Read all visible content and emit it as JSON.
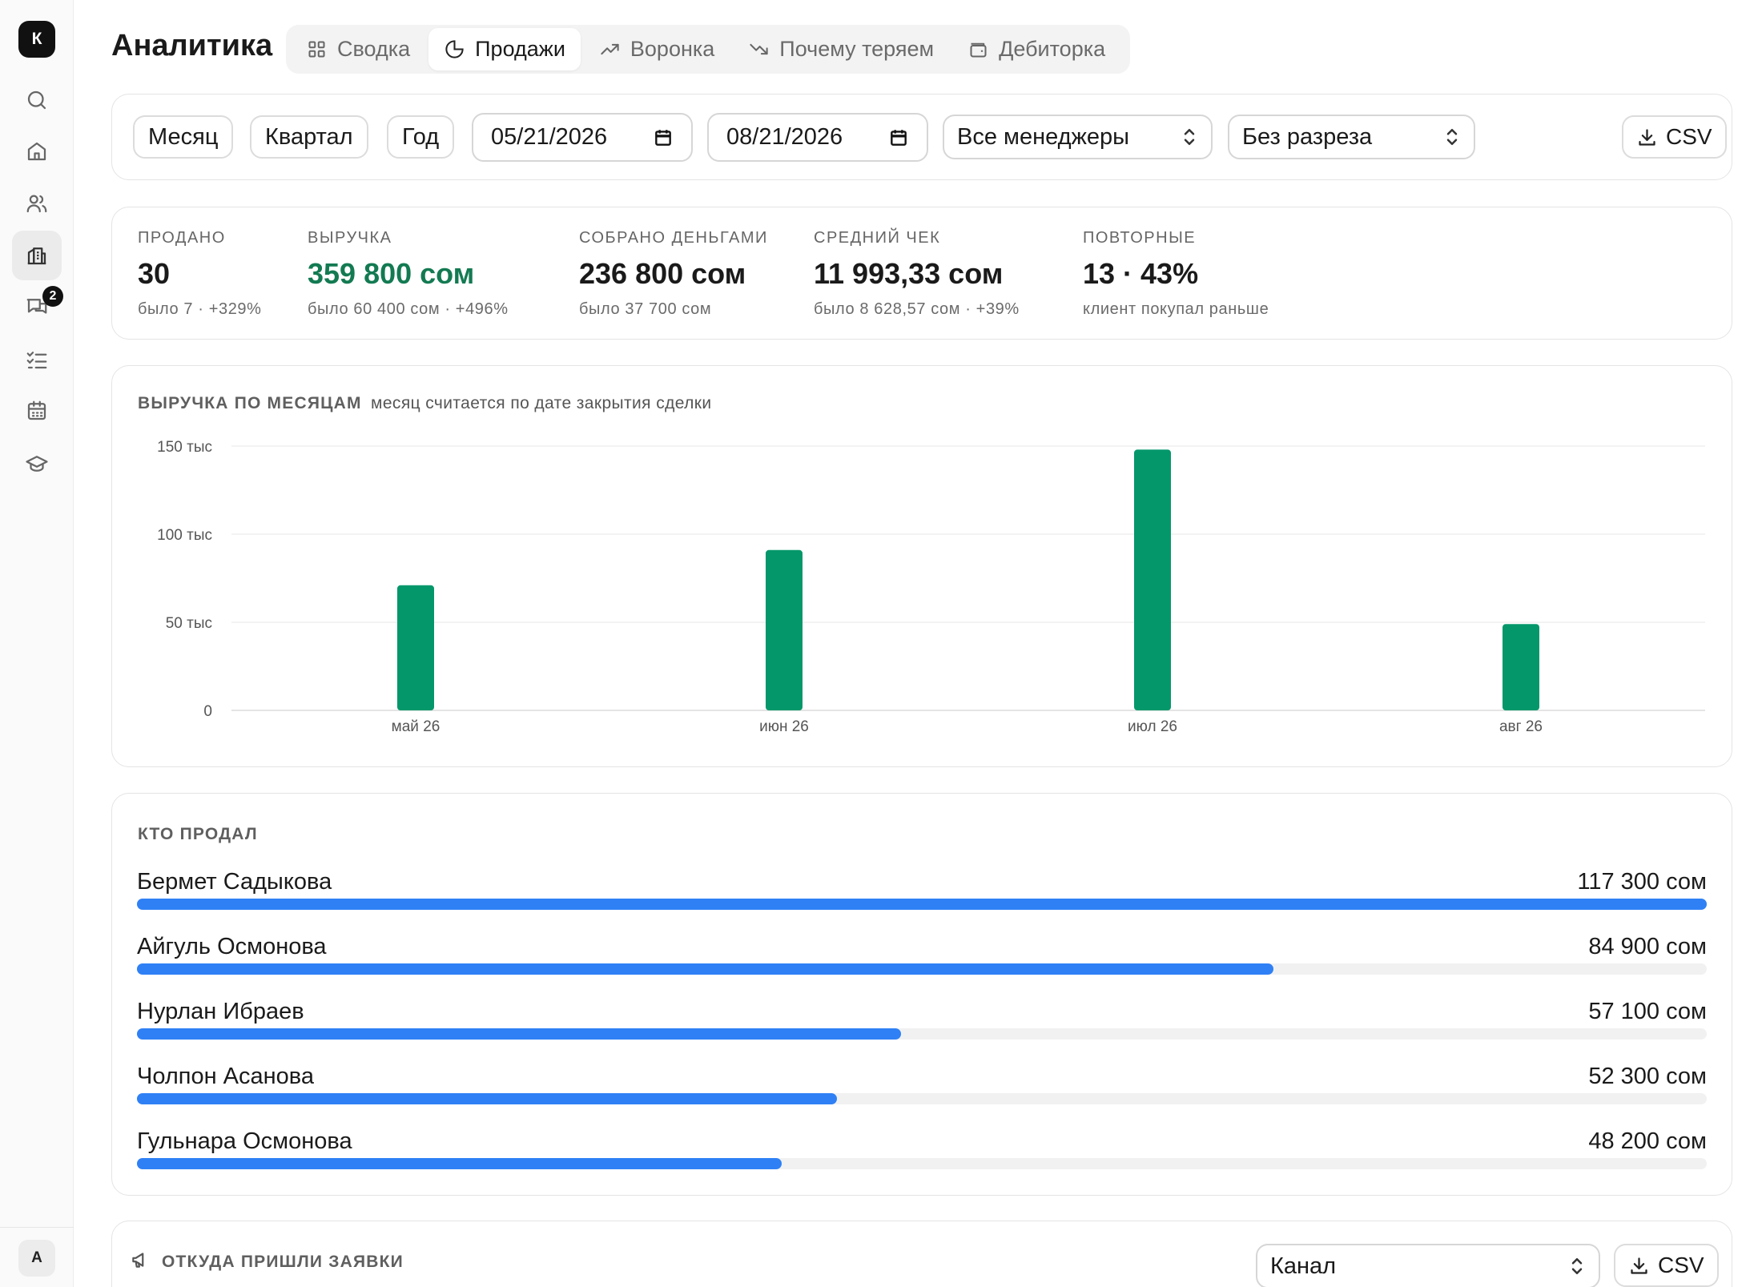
{
  "sidebar": {
    "logo": "К",
    "items": [
      {
        "name": "search-icon",
        "active": false
      },
      {
        "name": "home-icon",
        "active": false
      },
      {
        "name": "users-icon",
        "active": false
      },
      {
        "name": "analytics-icon",
        "active": true
      },
      {
        "name": "chat-icon",
        "active": false,
        "badge": "2"
      },
      {
        "name": "tasks-icon",
        "active": false
      },
      {
        "name": "calendar-icon",
        "active": false
      },
      {
        "name": "graduation-cap-icon",
        "active": false
      }
    ],
    "user_initial": "А"
  },
  "header": {
    "title": "Аналитика",
    "tabs": [
      {
        "label": "Сводка",
        "icon": "grid-icon",
        "active": false
      },
      {
        "label": "Продажи",
        "icon": "pie-chart-icon",
        "active": true
      },
      {
        "label": "Воронка",
        "icon": "trending-up-icon",
        "active": false
      },
      {
        "label": "Почему теряем",
        "icon": "trending-down-icon",
        "active": false
      },
      {
        "label": "Дебиторка",
        "icon": "wallet-icon",
        "active": false
      }
    ]
  },
  "filters": {
    "period_buttons": [
      "Месяц",
      "Квартал",
      "Год"
    ],
    "date_from": "05/21/2026",
    "date_to": "08/21/2026",
    "manager_select": "Все менеджеры",
    "breakdown_select": "Без разреза",
    "csv_label": "CSV"
  },
  "kpis": [
    {
      "label": "ПРОДАНО",
      "value": "30",
      "sub": "было 7 · +329%",
      "highlight": false
    },
    {
      "label": "ВЫРУЧКА",
      "value": "359 800 сом",
      "sub": "было 60 400 сом · +496%",
      "highlight": true
    },
    {
      "label": "СОБРАНО ДЕНЬГАМИ",
      "value": "236 800 сом",
      "sub": "было 37 700 сом",
      "highlight": false
    },
    {
      "label": "СРЕДНИЙ ЧЕК",
      "value": "11 993,33 сом",
      "sub": "было 8 628,57 сом · +39%",
      "highlight": false
    },
    {
      "label": "ПОВТОРНЫЕ",
      "value": "13 · 43%",
      "sub": "клиент покупал раньше",
      "highlight": false
    }
  ],
  "revenue_section": {
    "title": "ВЫРУЧКА ПО МЕСЯЦАМ",
    "subtitle": "месяц считается по дате закрытия сделки"
  },
  "chart_data": {
    "type": "bar",
    "title": "ВЫРУЧКА ПО МЕСЯЦАМ",
    "subtitle": "месяц считается по дате закрытия сделки",
    "categories": [
      "май 26",
      "июн 26",
      "июл 26",
      "авг 26"
    ],
    "values": [
      71000,
      91000,
      148000,
      49000
    ],
    "yticks": [
      0,
      50000,
      100000,
      150000
    ],
    "ytick_labels": [
      "0",
      "50 тыс",
      "100 тыс",
      "150 тыс"
    ],
    "ylim": [
      0,
      150000
    ],
    "grid": true,
    "color": "#04976a"
  },
  "sellers": {
    "title": "КТО ПРОДАЛ",
    "max": 117300,
    "rows": [
      {
        "name": "Бермет Садыкова",
        "amount_label": "117 300 сом",
        "value": 117300
      },
      {
        "name": "Айгуль Осмонова",
        "amount_label": "84 900 сом",
        "value": 84900
      },
      {
        "name": "Нурлан Ибраев",
        "amount_label": "57 100 сом",
        "value": 57100
      },
      {
        "name": "Чолпон Асанова",
        "amount_label": "52 300 сом",
        "value": 52300
      },
      {
        "name": "Гульнара Осмонова",
        "amount_label": "48 200 сом",
        "value": 48200
      }
    ],
    "bar_color": "#2f80f5"
  },
  "sources": {
    "title": "ОТКУДА ПРИШЛИ ЗАЯВКИ",
    "select": "Канал",
    "csv_label": "CSV"
  }
}
